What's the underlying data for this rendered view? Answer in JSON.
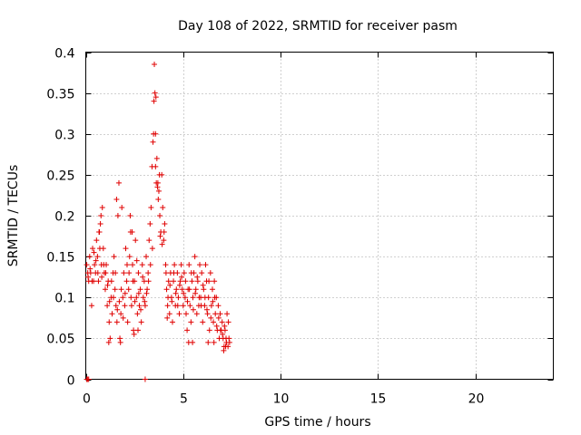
{
  "chart_data": {
    "type": "scatter",
    "title": "Day 108 of 2022, SRMTID for receiver pasm",
    "xlabel": "GPS time / hours",
    "ylabel": "SRMTID / TECUs",
    "xlim": [
      0,
      24
    ],
    "ylim": [
      0,
      0.4
    ],
    "xticks": [
      0,
      5,
      10,
      15,
      20
    ],
    "xtick_labels": [
      "0",
      "5",
      "10",
      "15",
      "20"
    ],
    "yticks": [
      0,
      0.05,
      0.1,
      0.15,
      0.2,
      0.25,
      0.3,
      0.35,
      0.4
    ],
    "ytick_labels": [
      "0",
      "0.05",
      "0.1",
      "0.15",
      "0.2",
      "0.25",
      "0.3",
      "0.35",
      "0.4"
    ],
    "grid": true,
    "marker": "plus",
    "color": "#e00000",
    "series": [
      {
        "name": "SRMTID",
        "points": [
          [
            0.05,
            0.0
          ],
          [
            0.1,
            0.0
          ],
          [
            0.15,
            0.0
          ],
          [
            3.05,
            0.0
          ],
          [
            0.05,
            0.14
          ],
          [
            0.1,
            0.13
          ],
          [
            0.15,
            0.12
          ],
          [
            0.2,
            0.15
          ],
          [
            0.25,
            0.13
          ],
          [
            0.3,
            0.09
          ],
          [
            0.35,
            0.16
          ],
          [
            0.4,
            0.12
          ],
          [
            0.45,
            0.14
          ],
          [
            0.5,
            0.13
          ],
          [
            0.55,
            0.17
          ],
          [
            0.6,
            0.15
          ],
          [
            0.65,
            0.12
          ],
          [
            0.7,
            0.18
          ],
          [
            0.75,
            0.19
          ],
          [
            0.8,
            0.14
          ],
          [
            0.85,
            0.21
          ],
          [
            0.9,
            0.16
          ],
          [
            0.95,
            0.13
          ],
          [
            1.0,
            0.11
          ],
          [
            1.05,
            0.14
          ],
          [
            1.1,
            0.09
          ],
          [
            1.15,
            0.12
          ],
          [
            1.2,
            0.07
          ],
          [
            1.25,
            0.05
          ],
          [
            1.3,
            0.1
          ],
          [
            1.35,
            0.08
          ],
          [
            1.4,
            0.13
          ],
          [
            1.45,
            0.15
          ],
          [
            1.5,
            0.11
          ],
          [
            1.55,
            0.09
          ],
          [
            1.6,
            0.07
          ],
          [
            1.65,
            0.2
          ],
          [
            1.7,
            0.24
          ],
          [
            1.75,
            0.05
          ],
          [
            1.8,
            0.08
          ],
          [
            1.85,
            0.21
          ],
          [
            1.9,
            0.1
          ],
          [
            1.95,
            0.13
          ],
          [
            2.0,
            0.09
          ],
          [
            2.05,
            0.16
          ],
          [
            2.1,
            0.12
          ],
          [
            2.15,
            0.07
          ],
          [
            2.2,
            0.11
          ],
          [
            2.25,
            0.15
          ],
          [
            2.3,
            0.18
          ],
          [
            2.35,
            0.09
          ],
          [
            2.4,
            0.14
          ],
          [
            2.45,
            0.06
          ],
          [
            2.5,
            0.12
          ],
          [
            2.55,
            0.17
          ],
          [
            2.6,
            0.1
          ],
          [
            2.65,
            0.08
          ],
          [
            2.7,
            0.13
          ],
          [
            2.75,
            0.09
          ],
          [
            2.8,
            0.11
          ],
          [
            2.85,
            0.07
          ],
          [
            2.9,
            0.14
          ],
          [
            2.95,
            0.1
          ],
          [
            3.0,
            0.12
          ],
          [
            3.05,
            0.09
          ],
          [
            3.1,
            0.15
          ],
          [
            3.15,
            0.11
          ],
          [
            3.2,
            0.13
          ],
          [
            3.25,
            0.17
          ],
          [
            3.3,
            0.19
          ],
          [
            3.35,
            0.21
          ],
          [
            3.4,
            0.26
          ],
          [
            3.45,
            0.29
          ],
          [
            3.5,
            0.34
          ],
          [
            3.52,
            0.385
          ],
          [
            3.55,
            0.35
          ],
          [
            3.58,
            0.3
          ],
          [
            3.6,
            0.345
          ],
          [
            3.65,
            0.27
          ],
          [
            3.7,
            0.24
          ],
          [
            3.72,
            0.22
          ],
          [
            3.75,
            0.23
          ],
          [
            3.8,
            0.2
          ],
          [
            3.85,
            0.18
          ],
          [
            3.9,
            0.25
          ],
          [
            3.95,
            0.21
          ],
          [
            4.0,
            0.17
          ],
          [
            4.05,
            0.19
          ],
          [
            4.1,
            0.14
          ],
          [
            4.15,
            0.11
          ],
          [
            4.2,
            0.09
          ],
          [
            4.25,
            0.12
          ],
          [
            4.3,
            0.08
          ],
          [
            4.35,
            0.13
          ],
          [
            4.4,
            0.1
          ],
          [
            4.45,
            0.07
          ],
          [
            4.5,
            0.12
          ],
          [
            4.55,
            0.14
          ],
          [
            4.6,
            0.09
          ],
          [
            4.65,
            0.11
          ],
          [
            4.7,
            0.13
          ],
          [
            4.75,
            0.1
          ],
          [
            4.8,
            0.08
          ],
          [
            4.85,
            0.12
          ],
          [
            4.9,
            0.14
          ],
          [
            4.95,
            0.11
          ],
          [
            5.0,
            0.09
          ],
          [
            5.05,
            0.13
          ],
          [
            5.1,
            0.1
          ],
          [
            5.15,
            0.08
          ],
          [
            5.2,
            0.06
          ],
          [
            5.25,
            0.11
          ],
          [
            5.3,
            0.14
          ],
          [
            5.35,
            0.09
          ],
          [
            5.4,
            0.07
          ],
          [
            5.45,
            0.12
          ],
          [
            5.5,
            0.1
          ],
          [
            5.55,
            0.13
          ],
          [
            5.6,
            0.15
          ],
          [
            5.65,
            0.11
          ],
          [
            5.7,
            0.08
          ],
          [
            5.75,
            0.12
          ],
          [
            5.8,
            0.09
          ],
          [
            5.85,
            0.14
          ],
          [
            5.9,
            0.1
          ],
          [
            5.95,
            0.13
          ],
          [
            6.0,
            0.07
          ],
          [
            6.05,
            0.11
          ],
          [
            6.1,
            0.09
          ],
          [
            6.15,
            0.14
          ],
          [
            6.2,
            0.12
          ],
          [
            6.25,
            0.08
          ],
          [
            6.3,
            0.1
          ],
          [
            6.35,
            0.06
          ],
          [
            6.4,
            0.13
          ],
          [
            6.45,
            0.09
          ],
          [
            6.5,
            0.11
          ],
          [
            6.55,
            0.07
          ],
          [
            6.6,
            0.12
          ],
          [
            6.65,
            0.08
          ],
          [
            6.7,
            0.1
          ],
          [
            6.75,
            0.06
          ],
          [
            6.8,
            0.09
          ],
          [
            6.85,
            0.05
          ],
          [
            6.9,
            0.08
          ],
          [
            6.95,
            0.06
          ],
          [
            7.0,
            0.07
          ],
          [
            7.05,
            0.05
          ],
          [
            7.1,
            0.04
          ],
          [
            7.15,
            0.06
          ],
          [
            7.2,
            0.05
          ],
          [
            7.25,
            0.08
          ],
          [
            7.3,
            0.04
          ],
          [
            7.35,
            0.05
          ],
          [
            0.12,
            0.125
          ],
          [
            0.22,
            0.135
          ],
          [
            0.32,
            0.12
          ],
          [
            0.42,
            0.155
          ],
          [
            0.52,
            0.145
          ],
          [
            0.62,
            0.13
          ],
          [
            0.72,
            0.16
          ],
          [
            0.82,
            0.125
          ],
          [
            0.92,
            0.14
          ],
          [
            1.02,
            0.13
          ],
          [
            1.12,
            0.115
          ],
          [
            1.22,
            0.095
          ],
          [
            1.32,
            0.12
          ],
          [
            1.42,
            0.1
          ],
          [
            1.52,
            0.13
          ],
          [
            1.62,
            0.085
          ],
          [
            1.72,
            0.095
          ],
          [
            1.82,
            0.11
          ],
          [
            1.92,
            0.075
          ],
          [
            2.02,
            0.105
          ],
          [
            2.12,
            0.14
          ],
          [
            2.22,
            0.13
          ],
          [
            2.32,
            0.1
          ],
          [
            2.42,
            0.12
          ],
          [
            2.52,
            0.095
          ],
          [
            2.62,
            0.145
          ],
          [
            2.72,
            0.105
          ],
          [
            2.82,
            0.085
          ],
          [
            2.92,
            0.125
          ],
          [
            3.02,
            0.095
          ],
          [
            3.12,
            0.105
          ],
          [
            3.22,
            0.12
          ],
          [
            3.32,
            0.14
          ],
          [
            3.42,
            0.16
          ],
          [
            3.62,
            0.24
          ],
          [
            3.82,
            0.175
          ],
          [
            3.92,
            0.165
          ],
          [
            4.02,
            0.18
          ],
          [
            4.12,
            0.13
          ],
          [
            4.22,
            0.1
          ],
          [
            4.32,
            0.115
          ],
          [
            4.42,
            0.095
          ],
          [
            4.52,
            0.13
          ],
          [
            4.62,
            0.105
          ],
          [
            4.72,
            0.09
          ],
          [
            4.82,
            0.115
          ],
          [
            4.92,
            0.125
          ],
          [
            5.02,
            0.105
          ],
          [
            5.12,
            0.12
          ],
          [
            5.22,
            0.095
          ],
          [
            5.32,
            0.11
          ],
          [
            5.42,
            0.13
          ],
          [
            5.52,
            0.085
          ],
          [
            5.62,
            0.105
          ],
          [
            5.72,
            0.125
          ],
          [
            5.82,
            0.1
          ],
          [
            5.92,
            0.09
          ],
          [
            6.02,
            0.115
          ],
          [
            6.12,
            0.1
          ],
          [
            6.22,
            0.085
          ],
          [
            6.32,
            0.12
          ],
          [
            6.42,
            0.075
          ],
          [
            6.52,
            0.095
          ],
          [
            6.62,
            0.1
          ],
          [
            6.72,
            0.065
          ],
          [
            6.82,
            0.075
          ],
          [
            6.92,
            0.06
          ],
          [
            7.02,
            0.055
          ],
          [
            7.12,
            0.065
          ],
          [
            7.22,
            0.045
          ],
          [
            7.32,
            0.07
          ],
          [
            7.38,
            0.045
          ],
          [
            1.18,
            0.045
          ],
          [
            1.78,
            0.045
          ],
          [
            2.48,
            0.055
          ],
          [
            2.68,
            0.06
          ],
          [
            3.58,
            0.26
          ],
          [
            3.68,
            0.235
          ],
          [
            3.78,
            0.25
          ],
          [
            4.18,
            0.075
          ],
          [
            5.28,
            0.045
          ],
          [
            5.48,
            0.045
          ],
          [
            6.28,
            0.045
          ],
          [
            6.58,
            0.045
          ],
          [
            7.08,
            0.035
          ],
          [
            7.18,
            0.04
          ],
          [
            3.48,
            0.3
          ],
          [
            0.78,
            0.2
          ],
          [
            1.58,
            0.22
          ],
          [
            2.28,
            0.2
          ],
          [
            0.68,
            0.18
          ],
          [
            2.38,
            0.18
          ]
        ]
      }
    ]
  }
}
